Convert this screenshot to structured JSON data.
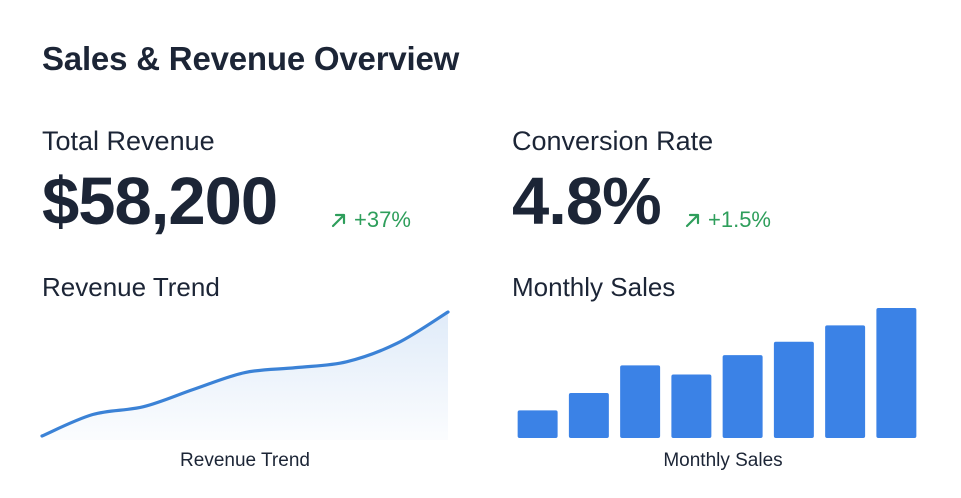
{
  "header": {
    "title": "Sales & Revenue Overview"
  },
  "kpis": {
    "revenue": {
      "label": "Total Revenue",
      "value": "$58,200",
      "change": "+37%",
      "change_icon": "arrow-up-right-icon"
    },
    "conversion": {
      "label": "Conversion Rate",
      "value": "4.8%",
      "change": "+1.5%",
      "change_icon": "arrow-up-right-icon"
    }
  },
  "colors": {
    "positive": "#2e9e5b",
    "line": "#3b82d6",
    "bar": "#3b82e6",
    "text": "#1c2536"
  },
  "charts": {
    "revenue_trend": {
      "title": "Revenue Trend",
      "caption": "Revenue Trend"
    },
    "monthly_sales": {
      "title": "Monthly Sales",
      "caption": "Monthly Sales"
    }
  },
  "chart_data": [
    {
      "type": "area",
      "title": "Revenue Trend",
      "xlabel": "Revenue Trend",
      "ylabel": "",
      "x": [
        0,
        1,
        2,
        3,
        4,
        5,
        6,
        7,
        8
      ],
      "values": [
        0,
        22,
        30,
        48,
        65,
        70,
        76,
        95,
        127
      ],
      "ylim": [
        0,
        127
      ],
      "axes_visible": false,
      "grid": false
    },
    {
      "type": "bar",
      "title": "Monthly Sales",
      "xlabel": "Monthly Sales",
      "ylabel": "",
      "categories": [
        "",
        "",
        "",
        "",
        "",
        "",
        "",
        ""
      ],
      "values": [
        27,
        44,
        71,
        62,
        81,
        94,
        110,
        127
      ],
      "ylim": [
        0,
        127
      ],
      "axes_visible": false,
      "grid": false
    }
  ]
}
